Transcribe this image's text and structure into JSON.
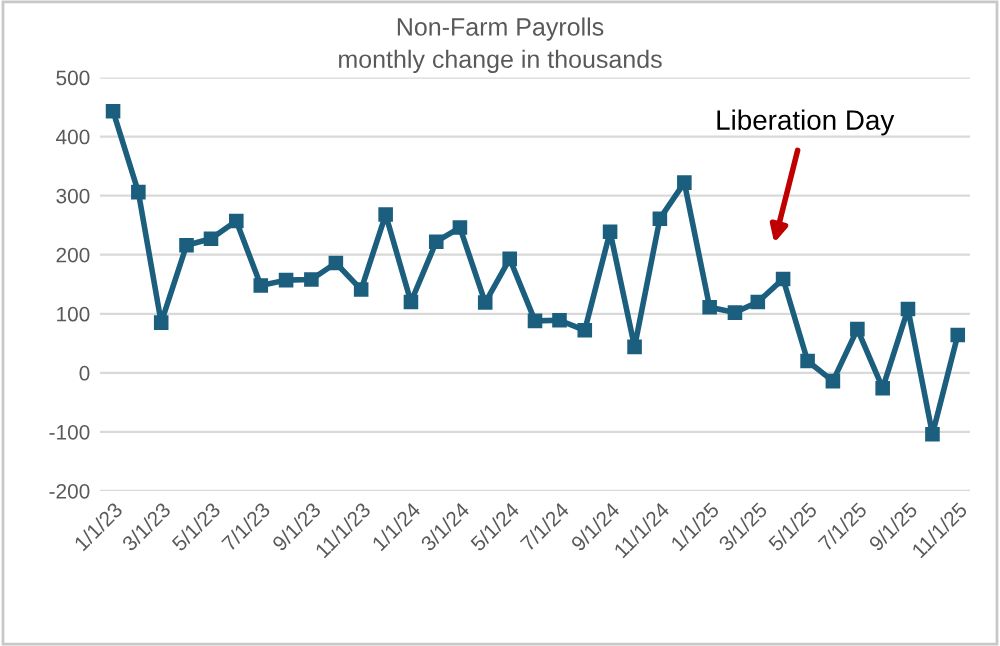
{
  "chart_data": {
    "type": "line",
    "title": "Non-Farm Payrolls",
    "subtitle": "monthly change in thousands",
    "x": [
      "2023-01",
      "2023-02",
      "2023-03",
      "2023-04",
      "2023-05",
      "2023-06",
      "2023-07",
      "2023-08",
      "2023-09",
      "2023-10",
      "2023-11",
      "2023-12",
      "2024-01",
      "2024-02",
      "2024-03",
      "2024-04",
      "2024-05",
      "2024-06",
      "2024-07",
      "2024-08",
      "2024-09",
      "2024-10",
      "2024-11",
      "2024-12",
      "2025-01",
      "2025-02",
      "2025-03",
      "2025-04",
      "2025-05",
      "2025-06",
      "2025-07",
      "2025-08",
      "2025-09",
      "2025-10",
      "2025-11"
    ],
    "series": [
      {
        "color": "#1b5e7e",
        "values": [
          443,
          306,
          85,
          216,
          227,
          257,
          148,
          157,
          158,
          186,
          141,
          268,
          120,
          222,
          246,
          119,
          193,
          88,
          89,
          72,
          239,
          44,
          261,
          322,
          111,
          102,
          120,
          159,
          20,
          -14,
          74,
          -26,
          108,
          -104,
          64
        ]
      }
    ],
    "ylim": [
      -200,
      500
    ],
    "yticks": [
      -200,
      -100,
      0,
      100,
      200,
      300,
      400,
      500
    ],
    "xlim": [
      "2022-12-16",
      "2025-11-16"
    ],
    "xticks": [
      {
        "value": "2023-01",
        "label": "1/1/23"
      },
      {
        "value": "2023-03",
        "label": "3/1/23"
      },
      {
        "value": "2023-05",
        "label": "5/1/23"
      },
      {
        "value": "2023-07",
        "label": "7/1/23"
      },
      {
        "value": "2023-09",
        "label": "9/1/23"
      },
      {
        "value": "2023-11",
        "label": "11/1/23"
      },
      {
        "value": "2024-01",
        "label": "1/1/24"
      },
      {
        "value": "2024-03",
        "label": "3/1/24"
      },
      {
        "value": "2024-05",
        "label": "5/1/24"
      },
      {
        "value": "2024-07",
        "label": "7/1/24"
      },
      {
        "value": "2024-09",
        "label": "9/1/24"
      },
      {
        "value": "2024-11",
        "label": "11/1/24"
      },
      {
        "value": "2025-01",
        "label": "1/1/25"
      },
      {
        "value": "2025-03",
        "label": "3/1/25"
      },
      {
        "value": "2025-05",
        "label": "5/1/25"
      },
      {
        "value": "2025-07",
        "label": "7/1/25"
      },
      {
        "value": "2025-09",
        "label": "9/1/25"
      },
      {
        "value": "2025-11",
        "label": "11/1/25"
      }
    ],
    "annotations": [
      "Liberation Day"
    ],
    "grid": "y",
    "marker": "square",
    "line_style": "solid",
    "legend": false
  }
}
